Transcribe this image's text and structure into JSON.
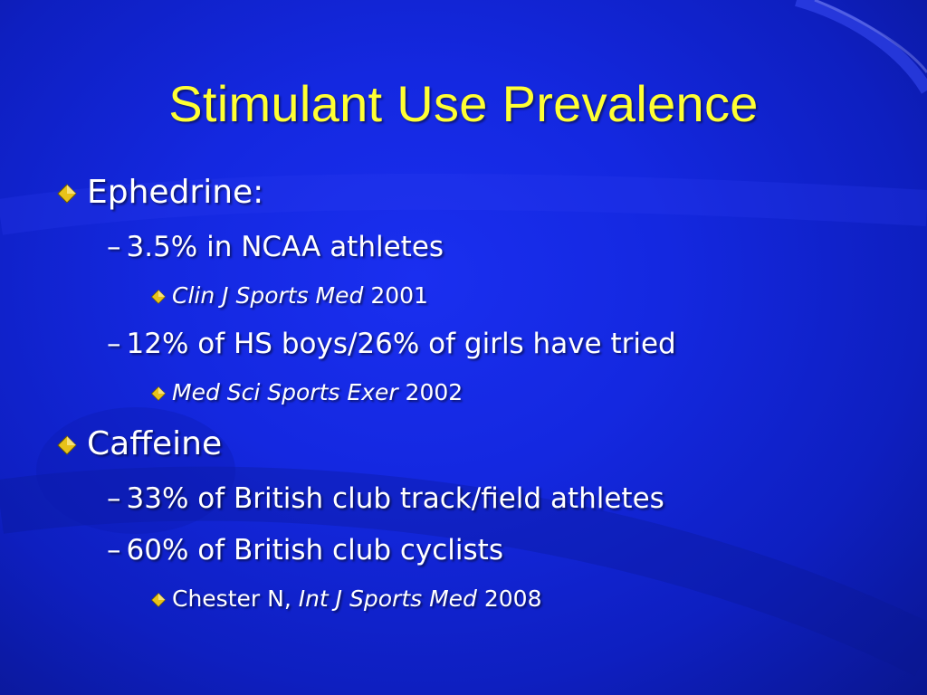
{
  "slide": {
    "title": "Stimulant Use Prevalence",
    "colors": {
      "background": "#1428e0",
      "title": "#ffff33",
      "text": "#ffffff",
      "bullet": "#e8c21a"
    },
    "bullet_icon": "diamond-bullet-icon",
    "ephedrine": {
      "label": "Ephedrine:",
      "item1": {
        "text": "3.5% in NCAA athletes",
        "dash": "–"
      },
      "ref1": {
        "journal": "Clin J Sports Med",
        "year": " 2001"
      },
      "item2": {
        "text": "12% of HS boys/26% of girls have tried",
        "dash": "–"
      },
      "ref2": {
        "journal": "Med Sci Sports Exer",
        "year": " 2002"
      }
    },
    "caffeine": {
      "label": "Caffeine",
      "item1": {
        "text": "33% of British club track/field athletes",
        "dash": "–"
      },
      "item2": {
        "text": "60% of British club cyclists",
        "dash": "–"
      },
      "ref": {
        "author": "Chester N, ",
        "journal": "Int J Sports Med",
        "year": " 2008"
      }
    }
  }
}
